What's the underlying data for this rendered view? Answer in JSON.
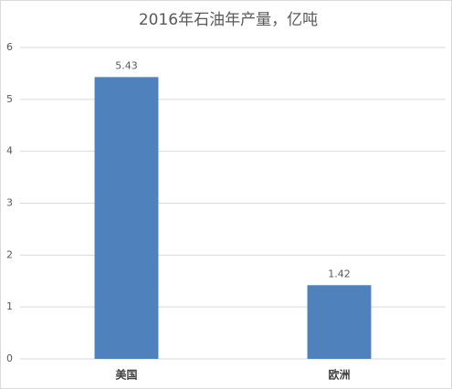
{
  "chart_data": {
    "type": "bar",
    "title": "2016年石油年产量，亿吨",
    "categories": [
      "美国",
      "欧洲"
    ],
    "values": [
      5.43,
      1.42
    ],
    "color": "#4f81bd",
    "ylim": [
      0,
      6
    ],
    "yticks": [
      0,
      1,
      2,
      3,
      4,
      5,
      6
    ],
    "grid": true,
    "data_labels": true
  }
}
